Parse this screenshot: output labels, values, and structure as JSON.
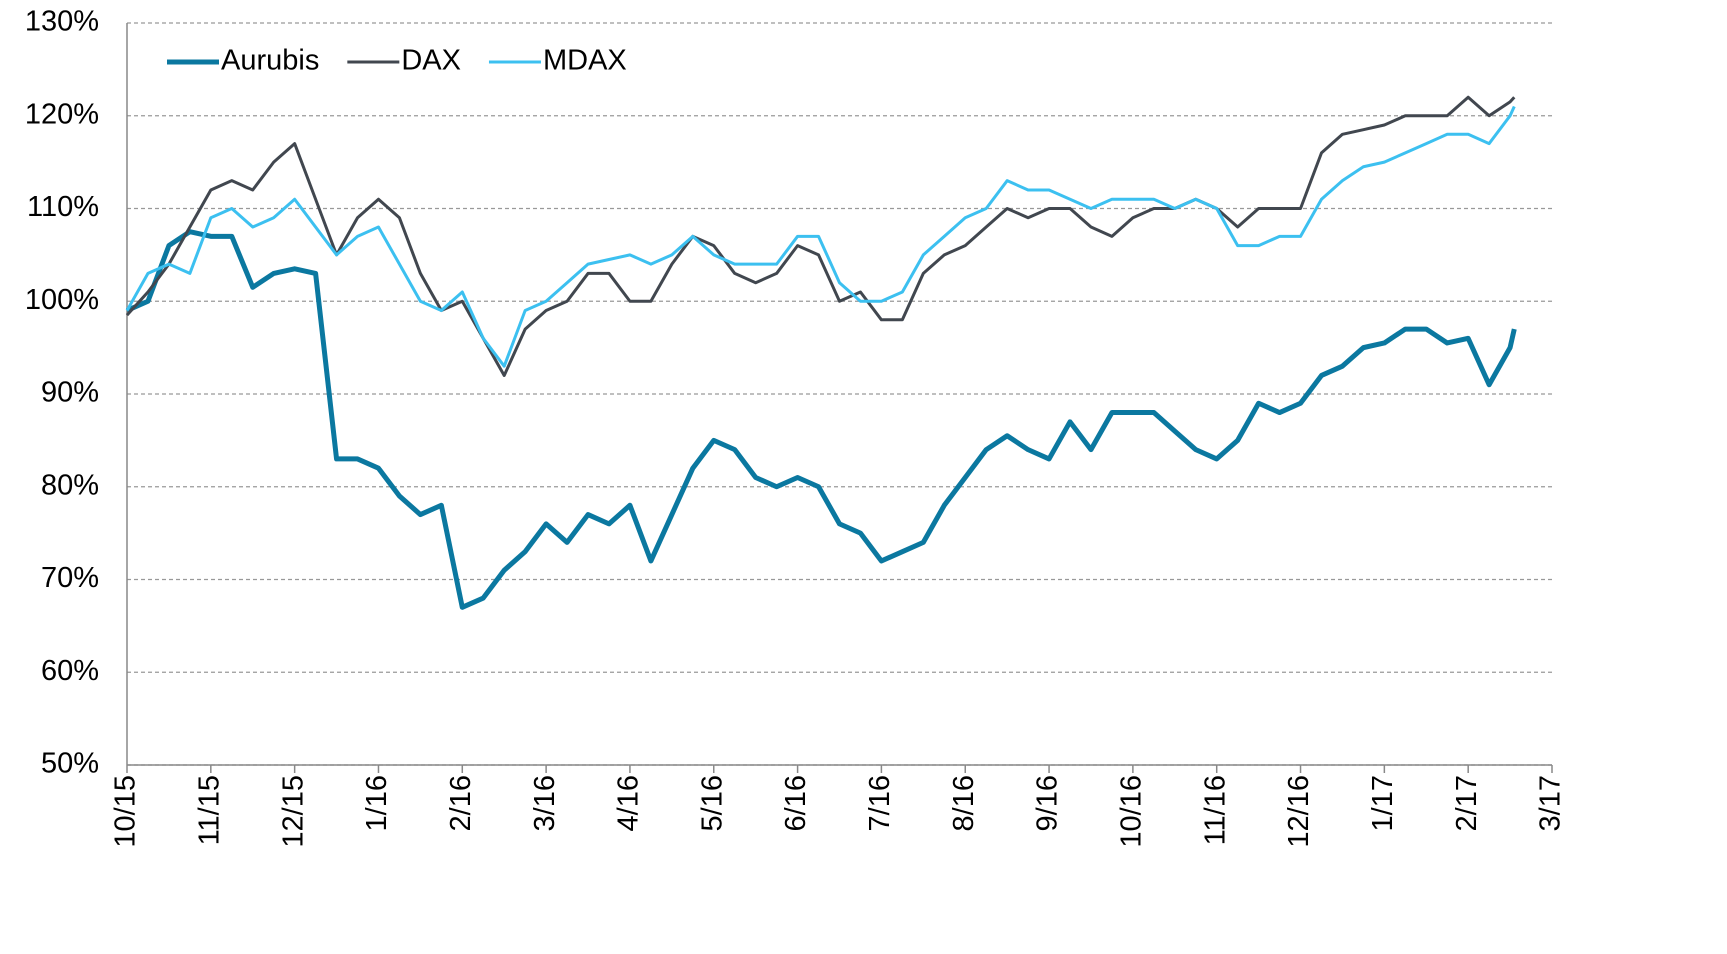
{
  "chart_data": {
    "type": "line",
    "x": [
      0,
      0.25,
      0.5,
      0.75,
      1,
      1.25,
      1.5,
      1.75,
      2,
      2.25,
      2.5,
      2.75,
      3,
      3.25,
      3.5,
      3.75,
      4,
      4.25,
      4.5,
      4.75,
      5,
      5.25,
      5.5,
      5.75,
      6,
      6.25,
      6.5,
      6.75,
      7,
      7.25,
      7.5,
      7.75,
      8,
      8.25,
      8.5,
      8.75,
      9,
      9.25,
      9.5,
      9.75,
      10,
      10.25,
      10.5,
      10.75,
      11,
      11.25,
      11.5,
      11.75,
      12,
      12.25,
      12.5,
      12.75,
      13,
      13.25,
      13.5,
      13.75,
      14,
      14.25,
      14.5,
      14.75,
      15,
      15.25,
      15.5,
      15.75,
      16,
      16.25,
      16.5,
      16.55
    ],
    "series": [
      {
        "name": "Aurubis",
        "color": "#0b78a0",
        "values": [
          99,
          100,
          106,
          107.5,
          107,
          107,
          101.5,
          103,
          103.5,
          103,
          83,
          83,
          82,
          79,
          77,
          78,
          67,
          68,
          71,
          73,
          76,
          74,
          77,
          76,
          78,
          72,
          77,
          82,
          85,
          84,
          81,
          80,
          81,
          80,
          76,
          75,
          72,
          73,
          74,
          78,
          81,
          84,
          85.5,
          84,
          83,
          87,
          84,
          88,
          88,
          88,
          86,
          84,
          83,
          85,
          89,
          88,
          89,
          92,
          93,
          95,
          95.5,
          97,
          97,
          95.5,
          96,
          91,
          95,
          97
        ]
      },
      {
        "name": "DAX",
        "color": "#41474f",
        "values": [
          98.5,
          101,
          104,
          108,
          112,
          113,
          112,
          115,
          117,
          111,
          105,
          109,
          111,
          109,
          103,
          99,
          100,
          96,
          92,
          97,
          99,
          100,
          103,
          103,
          100,
          100,
          104,
          107,
          106,
          103,
          102,
          103,
          106,
          105,
          100,
          101,
          98,
          98,
          103,
          105,
          106,
          108,
          110,
          109,
          110,
          110,
          108,
          107,
          109,
          110,
          110,
          111,
          110,
          108,
          110,
          110,
          110,
          116,
          118,
          118.5,
          119,
          120,
          120,
          120,
          122,
          120,
          121.5,
          122
        ]
      },
      {
        "name": "MDAX",
        "color": "#3cc0f0",
        "values": [
          99,
          103,
          104,
          103,
          109,
          110,
          108,
          109,
          111,
          108,
          105,
          107,
          108,
          104,
          100,
          99,
          101,
          96,
          93,
          99,
          100,
          102,
          104,
          104.5,
          105,
          104,
          105,
          107,
          105,
          104,
          104,
          104,
          107,
          107,
          102,
          100,
          100,
          101,
          105,
          107,
          109,
          110,
          113,
          112,
          112,
          111,
          110,
          111,
          111,
          111,
          110,
          111,
          110,
          106,
          106,
          107,
          107,
          111,
          113,
          114.5,
          115,
          116,
          117,
          118,
          118,
          117,
          120,
          121
        ]
      }
    ],
    "xlim": [
      0,
      17
    ],
    "xticks": [
      {
        "value": 0,
        "label": "10/15"
      },
      {
        "value": 1,
        "label": "11/15"
      },
      {
        "value": 2,
        "label": "12/15"
      },
      {
        "value": 3,
        "label": "1/16"
      },
      {
        "value": 4,
        "label": "2/16"
      },
      {
        "value": 5,
        "label": "3/16"
      },
      {
        "value": 6,
        "label": "4/16"
      },
      {
        "value": 7,
        "label": "5/16"
      },
      {
        "value": 8,
        "label": "6/16"
      },
      {
        "value": 9,
        "label": "7/16"
      },
      {
        "value": 10,
        "label": "8/16"
      },
      {
        "value": 11,
        "label": "9/16"
      },
      {
        "value": 12,
        "label": "10/16"
      },
      {
        "value": 13,
        "label": "11/16"
      },
      {
        "value": 14,
        "label": "12/16"
      },
      {
        "value": 15,
        "label": "1/17"
      },
      {
        "value": 16,
        "label": "2/17"
      },
      {
        "value": 17,
        "label": "3/17"
      }
    ],
    "ylim": [
      50,
      130
    ],
    "yticks": [
      {
        "value": 50,
        "label": "50%"
      },
      {
        "value": 60,
        "label": "60%"
      },
      {
        "value": 70,
        "label": "70%"
      },
      {
        "value": 80,
        "label": "80%"
      },
      {
        "value": 90,
        "label": "90%"
      },
      {
        "value": 100,
        "label": "100%"
      },
      {
        "value": 110,
        "label": "110%"
      },
      {
        "value": 120,
        "label": "120%"
      },
      {
        "value": 130,
        "label": "130%"
      }
    ],
    "grid": true,
    "legend": "upper left"
  }
}
